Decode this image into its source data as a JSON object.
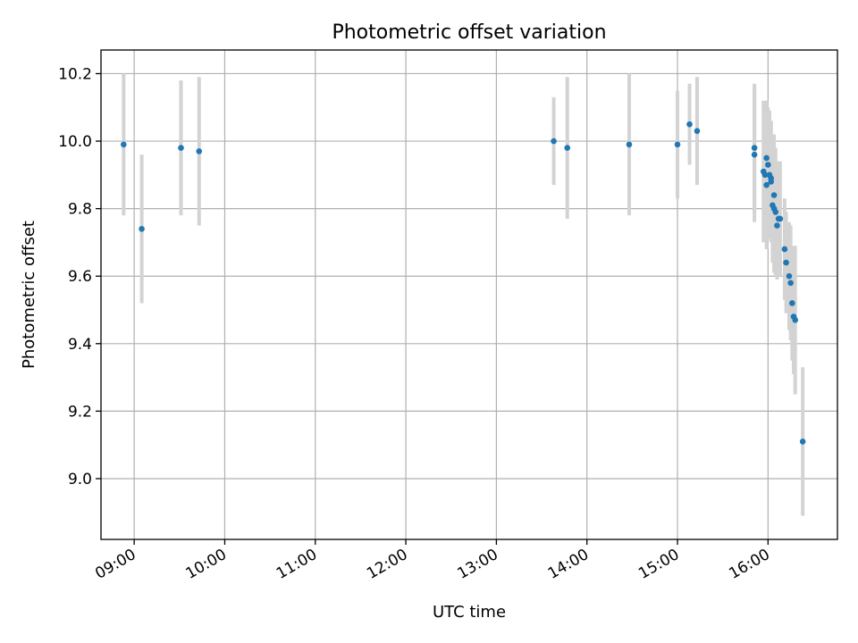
{
  "chart_data": {
    "type": "scatter",
    "title": "Photometric offset variation",
    "xlabel": "UTC time",
    "ylabel": "Photometric offset",
    "x_ticks": [
      "09:00",
      "10:00",
      "11:00",
      "12:00",
      "13:00",
      "14:00",
      "15:00",
      "16:00"
    ],
    "y_ticks": [
      "9.0",
      "9.2",
      "9.4",
      "9.6",
      "9.8",
      "10.0",
      "10.2"
    ],
    "xlim": [
      "08:38",
      "16:46"
    ],
    "ylim": [
      8.82,
      10.27
    ],
    "grid": true,
    "point_color": "#1f77b4",
    "error_bar_color": "#d3d3d3",
    "series": [
      {
        "points": [
          {
            "x": "08:53",
            "y": 9.99,
            "err": 0.21
          },
          {
            "x": "09:05",
            "y": 9.74,
            "err": 0.22
          },
          {
            "x": "09:31",
            "y": 9.98,
            "err": 0.2
          },
          {
            "x": "09:43",
            "y": 9.97,
            "err": 0.22
          },
          {
            "x": "13:38",
            "y": 10.0,
            "err": 0.13
          },
          {
            "x": "13:47",
            "y": 9.98,
            "err": 0.21
          },
          {
            "x": "14:28",
            "y": 9.99,
            "err": 0.21
          },
          {
            "x": "15:00",
            "y": 9.99,
            "err": 0.16
          },
          {
            "x": "15:08",
            "y": 10.05,
            "err": 0.12
          },
          {
            "x": "15:13",
            "y": 10.03,
            "err": 0.16
          },
          {
            "x": "15:51",
            "y": 9.98,
            "err": 0.19
          },
          {
            "x": "15:51",
            "y": 9.96,
            "err": 0.2
          },
          {
            "x": "15:57",
            "y": 9.91,
            "err": 0.21
          },
          {
            "x": "15:58",
            "y": 9.9,
            "err": 0.19
          },
          {
            "x": "15:59",
            "y": 9.95,
            "err": 0.17
          },
          {
            "x": "15:59",
            "y": 9.87,
            "err": 0.19
          },
          {
            "x": "16:00",
            "y": 9.93,
            "err": 0.17
          },
          {
            "x": "16:01",
            "y": 9.9,
            "err": 0.19
          },
          {
            "x": "16:02",
            "y": 9.88,
            "err": 0.18
          },
          {
            "x": "16:02",
            "y": 9.89,
            "err": 0.17
          },
          {
            "x": "16:03",
            "y": 9.81,
            "err": 0.17
          },
          {
            "x": "16:04",
            "y": 9.84,
            "err": 0.18
          },
          {
            "x": "16:04",
            "y": 9.8,
            "err": 0.19
          },
          {
            "x": "16:05",
            "y": 9.79,
            "err": 0.19
          },
          {
            "x": "16:06",
            "y": 9.75,
            "err": 0.16
          },
          {
            "x": "16:07",
            "y": 9.77,
            "err": 0.17
          },
          {
            "x": "16:08",
            "y": 9.77,
            "err": 0.17
          },
          {
            "x": "16:11",
            "y": 9.68,
            "err": 0.15
          },
          {
            "x": "16:12",
            "y": 9.64,
            "err": 0.15
          },
          {
            "x": "16:14",
            "y": 9.6,
            "err": 0.16
          },
          {
            "x": "16:15",
            "y": 9.58,
            "err": 0.17
          },
          {
            "x": "16:16",
            "y": 9.52,
            "err": 0.17
          },
          {
            "x": "16:17",
            "y": 9.48,
            "err": 0.17
          },
          {
            "x": "16:18",
            "y": 9.47,
            "err": 0.22
          },
          {
            "x": "16:23",
            "y": 9.11,
            "err": 0.22
          }
        ]
      }
    ]
  }
}
